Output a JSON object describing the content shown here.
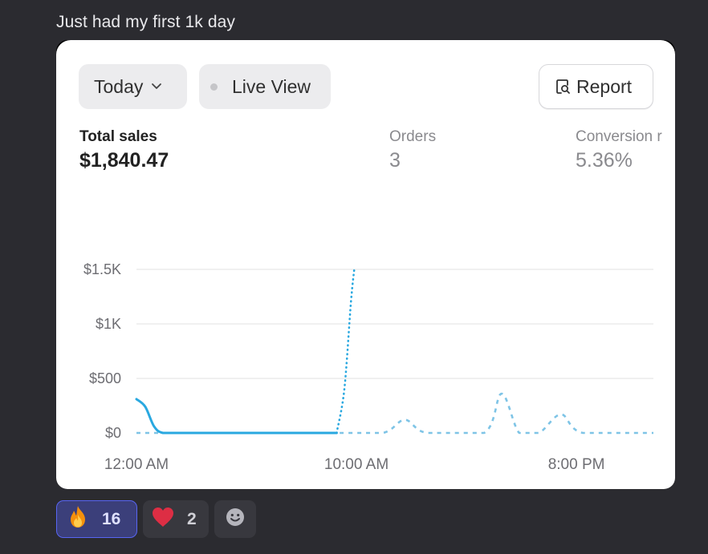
{
  "message": {
    "text": "Just had my first 1k day"
  },
  "card": {
    "filter_label": "Today",
    "live_view_label": "Live View",
    "report_label": "Report",
    "metrics": [
      {
        "label": "Total sales",
        "value": "$1,840.47"
      },
      {
        "label": "Orders",
        "value": "3"
      },
      {
        "label": "Conversion r",
        "value": "5.36%"
      }
    ]
  },
  "chart_data": {
    "type": "line",
    "y_ticks": [
      "$1.5K",
      "$1K",
      "$500",
      "$0"
    ],
    "x_ticks": [
      "12:00 AM",
      "10:00 AM",
      "8:00 PM"
    ],
    "ylim": [
      0,
      1500
    ],
    "series": [
      {
        "style": "solid",
        "color": "#29a8e0",
        "points": [
          [
            0,
            310
          ],
          [
            0.4,
            240
          ],
          [
            0.8,
            60
          ],
          [
            1.2,
            0
          ],
          [
            2,
            0
          ],
          [
            4,
            0
          ],
          [
            6,
            0
          ],
          [
            8,
            0
          ],
          [
            9.1,
            0
          ]
        ]
      },
      {
        "style": "dotted",
        "color": "#29a8e0",
        "points": [
          [
            9.1,
            0
          ],
          [
            9.45,
            400
          ],
          [
            9.75,
            1200
          ],
          [
            9.9,
            1500
          ]
        ]
      },
      {
        "style": "dashed",
        "color": "#7ec4e6",
        "points": [
          [
            0,
            0
          ],
          [
            9.1,
            0
          ],
          [
            11.2,
            0
          ],
          [
            12.2,
            120
          ],
          [
            13.2,
            0
          ],
          [
            15.8,
            0
          ],
          [
            16.6,
            360
          ],
          [
            17.4,
            0
          ],
          [
            18.3,
            0
          ],
          [
            19.3,
            170
          ],
          [
            20.3,
            0
          ],
          [
            23.5,
            0
          ]
        ]
      }
    ],
    "grid": true,
    "legend": "none"
  },
  "reactions": [
    {
      "emoji": "fire",
      "count": "16",
      "active": true
    },
    {
      "emoji": "heart",
      "count": "2",
      "active": false
    }
  ],
  "colors": {
    "accent": "#5865f2",
    "line": "#29a8e0",
    "background": "#2b2b30"
  }
}
